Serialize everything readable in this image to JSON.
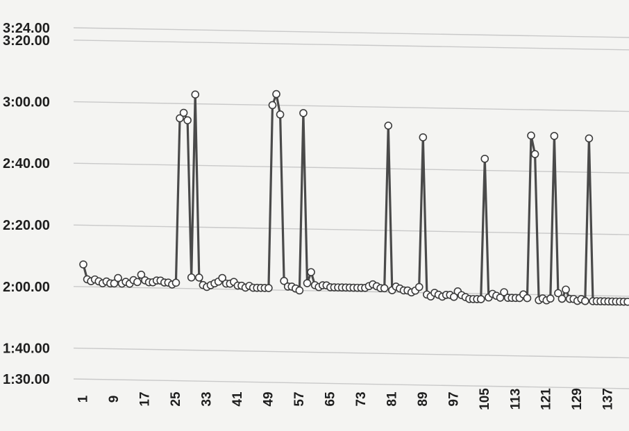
{
  "chart_data": {
    "type": "line",
    "title": "",
    "xlabel": "",
    "ylabel": "",
    "y_unit": "minutes:seconds",
    "xlim": [
      1,
      142
    ],
    "ylim": [
      1.5,
      3.4
    ],
    "y_ticks": [
      {
        "label": "3:24.00",
        "value": 3.4
      },
      {
        "label": "3:20.00",
        "value": 3.333
      },
      {
        "label": "3:00.00",
        "value": 3.0
      },
      {
        "label": "2:40.00",
        "value": 2.667
      },
      {
        "label": "2:20.00",
        "value": 2.333
      },
      {
        "label": "2:00.00",
        "value": 2.0
      },
      {
        "label": "1:40.00",
        "value": 1.667
      },
      {
        "label": "1:30.00",
        "value": 1.5
      }
    ],
    "x_ticks": [
      1,
      9,
      17,
      25,
      33,
      41,
      49,
      57,
      65,
      73,
      81,
      89,
      97,
      105,
      113,
      121,
      129,
      137
    ],
    "grid": true,
    "line_color": "#4a4a4a",
    "marker_color": "#ffffff",
    "series": [
      {
        "x": [
          1,
          2,
          3,
          4,
          5,
          6,
          7,
          8,
          9,
          10,
          11,
          12,
          13,
          14,
          15,
          16,
          17,
          18,
          19,
          20,
          21,
          22,
          23,
          24,
          25,
          26,
          27,
          28,
          29,
          30,
          31,
          32,
          33,
          34,
          35,
          36,
          37,
          38,
          39,
          40,
          41,
          42,
          43,
          44,
          45,
          46,
          47,
          48,
          49,
          50,
          51,
          52,
          53,
          54,
          55,
          56,
          57,
          58,
          59,
          60,
          61,
          62,
          63,
          64,
          65,
          66,
          67,
          68,
          69,
          70,
          71,
          72,
          73,
          74,
          75,
          76,
          77,
          78,
          79,
          80,
          81,
          82,
          83,
          84,
          85,
          86,
          87,
          88,
          89,
          90,
          91,
          92,
          93,
          94,
          95,
          96,
          97,
          98,
          99,
          100,
          101,
          102,
          103,
          104,
          105,
          106,
          107,
          108,
          109,
          110,
          111,
          112,
          113,
          114,
          115,
          116,
          117,
          118,
          119,
          120,
          121,
          122,
          123,
          124,
          125,
          126,
          127,
          128,
          129,
          130,
          131,
          132,
          133,
          134,
          135,
          136,
          137,
          138,
          139,
          140,
          141,
          142
        ],
        "y": [
          2.12,
          2.04,
          2.03,
          2.04,
          2.03,
          2.02,
          2.03,
          2.02,
          2.02,
          2.05,
          2.02,
          2.03,
          2.02,
          2.04,
          2.03,
          2.07,
          2.04,
          2.03,
          2.03,
          2.04,
          2.04,
          2.03,
          2.03,
          2.02,
          2.03,
          2.92,
          2.95,
          2.91,
          2.06,
          3.05,
          2.06,
          2.02,
          2.01,
          2.02,
          2.03,
          2.04,
          2.06,
          2.03,
          2.03,
          2.04,
          2.02,
          2.02,
          2.01,
          2.02,
          2.01,
          2.01,
          2.01,
          2.01,
          2.01,
          3.0,
          3.06,
          2.95,
          2.05,
          2.02,
          2.02,
          2.01,
          2.0,
          2.96,
          2.04,
          2.1,
          2.03,
          2.02,
          2.03,
          2.03,
          2.02,
          2.02,
          2.02,
          2.02,
          2.02,
          2.02,
          2.02,
          2.02,
          2.02,
          2.02,
          2.03,
          2.04,
          2.03,
          2.02,
          2.02,
          2.9,
          2.01,
          2.03,
          2.02,
          2.01,
          2.01,
          2.0,
          2.01,
          2.03,
          2.84,
          1.99,
          1.98,
          2.0,
          1.99,
          1.98,
          1.99,
          1.99,
          1.98,
          2.01,
          1.99,
          1.98,
          1.97,
          1.97,
          1.97,
          1.97,
          2.73,
          1.98,
          2.0,
          1.99,
          1.98,
          2.01,
          1.98,
          1.98,
          1.98,
          1.98,
          2.0,
          1.98,
          2.86,
          2.76,
          1.97,
          1.98,
          1.97,
          1.98,
          2.86,
          2.01,
          1.98,
          2.03,
          1.98,
          1.98,
          1.97,
          1.98,
          1.97,
          2.85,
          1.97,
          1.97,
          1.97,
          1.97,
          1.97,
          1.97,
          1.97,
          1.97,
          1.97,
          1.97
        ]
      }
    ]
  }
}
